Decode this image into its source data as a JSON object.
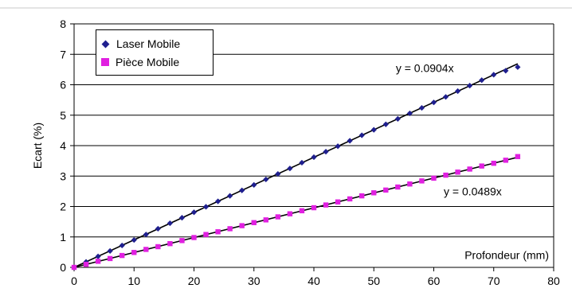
{
  "chart_data": {
    "type": "scatter",
    "xlabel": "Profondeur (mm)",
    "ylabel": "Ecart (%)",
    "xlim": [
      0,
      80
    ],
    "ylim": [
      0,
      8
    ],
    "x_ticks": [
      "0",
      "10",
      "20",
      "30",
      "40",
      "50",
      "60",
      "70",
      "80"
    ],
    "y_ticks": [
      "0",
      "1",
      "2",
      "3",
      "4",
      "5",
      "6",
      "7",
      "8"
    ],
    "grid": "horizontal",
    "legend_position": "top-left",
    "series": [
      {
        "name": "Laser Mobile",
        "marker": "diamond",
        "color": "#1f1f8f",
        "trendline_label": "y = 0.0904x",
        "slope": 0.0904,
        "x": [
          0,
          2,
          4,
          6,
          8,
          10,
          12,
          14,
          16,
          18,
          20,
          22,
          24,
          26,
          28,
          30,
          32,
          34,
          36,
          38,
          40,
          42,
          44,
          46,
          48,
          50,
          52,
          54,
          56,
          58,
          60,
          62,
          64,
          66,
          68,
          70,
          72,
          74
        ],
        "y": [
          0.0,
          0.18,
          0.36,
          0.54,
          0.72,
          0.9,
          1.08,
          1.27,
          1.45,
          1.63,
          1.81,
          1.99,
          2.17,
          2.35,
          2.53,
          2.71,
          2.89,
          3.07,
          3.25,
          3.44,
          3.62,
          3.8,
          3.98,
          4.16,
          4.34,
          4.52,
          4.7,
          4.88,
          5.06,
          5.24,
          5.42,
          5.6,
          5.79,
          5.97,
          6.15,
          6.33,
          6.46,
          6.58
        ]
      },
      {
        "name": "Pièce Mobile",
        "marker": "square",
        "color": "#e020e0",
        "trendline_label": "y = 0.0489x",
        "slope": 0.0489,
        "x": [
          0,
          2,
          4,
          6,
          8,
          10,
          12,
          14,
          16,
          18,
          20,
          22,
          24,
          26,
          28,
          30,
          32,
          34,
          36,
          38,
          40,
          42,
          44,
          46,
          48,
          50,
          52,
          54,
          56,
          58,
          60,
          62,
          64,
          66,
          68,
          70,
          72,
          74
        ],
        "y": [
          0.0,
          0.1,
          0.2,
          0.29,
          0.39,
          0.49,
          0.59,
          0.68,
          0.78,
          0.88,
          0.98,
          1.08,
          1.17,
          1.27,
          1.37,
          1.47,
          1.56,
          1.66,
          1.76,
          1.86,
          1.96,
          2.05,
          2.15,
          2.25,
          2.35,
          2.45,
          2.54,
          2.64,
          2.74,
          2.84,
          2.93,
          3.03,
          3.13,
          3.23,
          3.33,
          3.42,
          3.52,
          3.64
        ]
      }
    ],
    "colors": {
      "trendline": "#000000",
      "gridline": "#000000",
      "plot_background": "#ffffff"
    }
  }
}
